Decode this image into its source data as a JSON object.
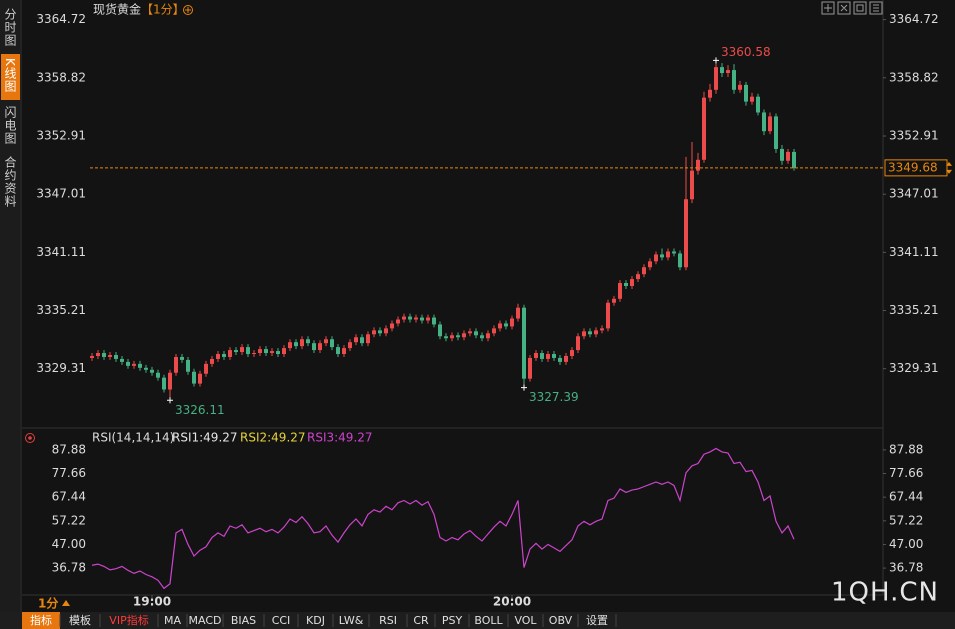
{
  "header": {
    "title": "现货黄金",
    "period": "【1分】"
  },
  "sidebar": {
    "tabs": [
      "分时图",
      "K线图",
      "闪电图",
      "合约资料"
    ],
    "active": 1
  },
  "period_selector": "1分",
  "toolbar": {
    "items": [
      "指标",
      "模板",
      "VIP指标",
      "MA",
      "MACD",
      "BIAS",
      "CCI",
      "KDJ",
      "LW&",
      "RSI",
      "CR",
      "PSY",
      "BOLL",
      "VOL",
      "OBV",
      "设置"
    ],
    "active": 0,
    "accent": 2
  },
  "watermark": "1QH.CN",
  "chart_data": [
    {
      "type": "candlestick",
      "up_color": "#ec4b4b",
      "down_color": "#46b184",
      "last_line_color": "#e8860f",
      "ylim": [
        3323.6,
        3366.2
      ],
      "yticks": [
        3364.72,
        3358.82,
        3352.91,
        3347.01,
        3341.11,
        3335.21,
        3329.31
      ],
      "annotations": {
        "high": 104,
        "lows": [
          13,
          72
        ]
      },
      "categories": [
        null,
        null,
        null,
        null,
        null,
        null,
        null,
        null,
        null,
        null,
        "19:00",
        null,
        null,
        null,
        null,
        null,
        null,
        null,
        null,
        null,
        null,
        null,
        null,
        null,
        null,
        null,
        null,
        null,
        null,
        null,
        null,
        null,
        null,
        null,
        null,
        null,
        null,
        null,
        null,
        null,
        null,
        null,
        null,
        null,
        null,
        null,
        null,
        null,
        null,
        null,
        null,
        null,
        null,
        null,
        null,
        null,
        null,
        null,
        null,
        null,
        null,
        null,
        null,
        null,
        null,
        null,
        null,
        null,
        null,
        null,
        "20:00",
        null,
        null,
        null,
        null,
        null,
        null,
        null,
        null,
        null,
        null,
        null,
        null,
        null,
        null,
        null,
        null,
        null,
        null,
        null,
        null,
        null,
        null,
        null,
        null,
        null,
        null,
        null,
        null,
        null,
        null,
        null,
        null,
        null,
        null,
        null,
        null,
        null,
        null,
        null,
        null,
        null,
        null,
        null,
        null,
        null,
        null,
        null
      ],
      "open": [
        3330.4,
        3330.6,
        3330.9,
        3330.5,
        3330.7,
        3330.3,
        3330.0,
        3329.6,
        3329.8,
        3329.4,
        3329.2,
        3328.9,
        3328.4,
        3327.2,
        3328.9,
        3330.5,
        3330.2,
        3329.0,
        3327.8,
        3328.8,
        3329.8,
        3330.3,
        3330.8,
        3330.5,
        3331.2,
        3331.0,
        3331.5,
        3330.8,
        3330.9,
        3331.3,
        3330.9,
        3331.1,
        3330.8,
        3331.4,
        3332.0,
        3331.6,
        3332.3,
        3331.9,
        3331.2,
        3331.9,
        3332.3,
        3331.5,
        3330.8,
        3331.4,
        3332.0,
        3332.5,
        3331.9,
        3332.8,
        3333.2,
        3332.9,
        3333.4,
        3333.9,
        3334.3,
        3334.6,
        3334.3,
        3334.5,
        3334.2,
        3334.5,
        3333.8,
        3332.6,
        3332.4,
        3332.7,
        3332.5,
        3332.9,
        3333.1,
        3332.7,
        3332.4,
        3332.9,
        3333.4,
        3333.9,
        3333.6,
        3334.4,
        3335.5,
        3328.3,
        3330.4,
        3330.9,
        3330.3,
        3330.8,
        3330.4,
        3330.0,
        3330.6,
        3331.2,
        3332.6,
        3333.1,
        3332.8,
        3333.2,
        3333.4,
        3336.0,
        3336.4,
        3338.0,
        3337.7,
        3338.4,
        3338.9,
        3339.6,
        3340.2,
        3340.9,
        3340.6,
        3341.2,
        3341.0,
        3339.6,
        3346.5,
        3349.4,
        3350.5,
        3356.8,
        3357.6,
        3359.9,
        3359.3,
        3359.6,
        3357.6,
        3358.1,
        3356.4,
        3356.9,
        3355.3,
        3353.4,
        3354.9,
        3351.6,
        3350.4,
        3351.3
      ],
      "high": [
        3330.9,
        3331.2,
        3331.2,
        3331.0,
        3331.0,
        3330.6,
        3330.3,
        3330.1,
        3330.1,
        3329.7,
        3329.5,
        3329.2,
        3328.7,
        3329.2,
        3330.8,
        3330.8,
        3330.5,
        3329.3,
        3329.1,
        3330.1,
        3330.6,
        3331.1,
        3331.1,
        3331.5,
        3331.5,
        3331.8,
        3331.8,
        3331.2,
        3331.6,
        3331.6,
        3331.4,
        3331.4,
        3331.7,
        3332.3,
        3332.3,
        3332.6,
        3332.6,
        3332.2,
        3332.2,
        3332.6,
        3332.6,
        3331.8,
        3331.7,
        3332.3,
        3332.8,
        3332.8,
        3333.1,
        3333.5,
        3333.5,
        3333.7,
        3334.2,
        3334.6,
        3334.9,
        3334.9,
        3334.8,
        3334.8,
        3334.8,
        3334.8,
        3334.1,
        3332.9,
        3333.0,
        3333.0,
        3333.2,
        3333.4,
        3333.4,
        3333.0,
        3333.2,
        3333.7,
        3334.2,
        3334.2,
        3334.7,
        3335.9,
        3335.8,
        3330.7,
        3331.2,
        3331.2,
        3331.1,
        3331.1,
        3330.7,
        3330.9,
        3331.5,
        3332.9,
        3333.4,
        3333.4,
        3333.5,
        3333.7,
        3336.3,
        3336.7,
        3338.3,
        3338.3,
        3338.7,
        3339.2,
        3339.9,
        3340.5,
        3341.2,
        3341.5,
        3341.5,
        3341.5,
        3341.3,
        3350.8,
        3352.3,
        3351.2,
        3357.4,
        3358.2,
        3360.58,
        3360.3,
        3360.1,
        3360.2,
        3358.5,
        3358.4,
        3357.3,
        3357.2,
        3355.6,
        3355.3,
        3355.2,
        3352.0,
        3351.6,
        3351.6
      ],
      "low": [
        3330.1,
        3330.3,
        3330.2,
        3330.2,
        3330.0,
        3329.7,
        3329.3,
        3329.3,
        3329.1,
        3328.9,
        3328.6,
        3328.1,
        3326.9,
        3326.11,
        3328.6,
        3329.9,
        3328.7,
        3327.5,
        3327.5,
        3328.5,
        3329.5,
        3330.0,
        3330.2,
        3330.2,
        3330.7,
        3330.7,
        3330.5,
        3330.5,
        3330.6,
        3330.6,
        3330.6,
        3330.5,
        3330.5,
        3331.1,
        3331.3,
        3331.3,
        3331.6,
        3330.9,
        3330.9,
        3331.6,
        3331.2,
        3330.5,
        3330.5,
        3331.1,
        3331.7,
        3331.6,
        3331.6,
        3332.5,
        3332.6,
        3332.6,
        3333.1,
        3333.6,
        3334.0,
        3334.0,
        3334.0,
        3333.9,
        3333.9,
        3333.5,
        3332.3,
        3332.1,
        3332.1,
        3332.2,
        3332.2,
        3332.6,
        3332.4,
        3332.1,
        3332.1,
        3332.6,
        3333.1,
        3333.3,
        3333.3,
        3334.1,
        3327.39,
        3328.0,
        3330.1,
        3330.0,
        3330.0,
        3330.1,
        3329.7,
        3329.7,
        3330.3,
        3330.9,
        3332.3,
        3332.5,
        3332.5,
        3332.9,
        3333.1,
        3335.7,
        3336.1,
        3337.4,
        3337.4,
        3338.1,
        3338.6,
        3339.3,
        3339.9,
        3340.3,
        3340.3,
        3340.7,
        3339.3,
        3339.3,
        3346.1,
        3349.0,
        3350.2,
        3356.4,
        3357.2,
        3358.9,
        3358.9,
        3357.2,
        3357.3,
        3356.0,
        3356.1,
        3355.0,
        3353.0,
        3353.1,
        3351.2,
        3350.0,
        3350.1,
        3349.4
      ],
      "close": [
        3330.6,
        3330.9,
        3330.5,
        3330.7,
        3330.3,
        3330.0,
        3329.6,
        3329.8,
        3329.4,
        3329.2,
        3328.9,
        3328.4,
        3327.2,
        3328.9,
        3330.5,
        3330.2,
        3329.0,
        3327.8,
        3328.8,
        3329.8,
        3330.3,
        3330.8,
        3330.5,
        3331.2,
        3331.0,
        3331.5,
        3330.8,
        3330.9,
        3331.3,
        3330.9,
        3331.1,
        3330.8,
        3331.4,
        3332.0,
        3331.6,
        3332.3,
        3331.9,
        3331.2,
        3331.9,
        3332.3,
        3331.5,
        3330.8,
        3331.4,
        3332.0,
        3332.5,
        3331.9,
        3332.8,
        3333.2,
        3332.9,
        3333.4,
        3333.9,
        3334.3,
        3334.6,
        3334.3,
        3334.5,
        3334.2,
        3334.5,
        3333.8,
        3332.6,
        3332.4,
        3332.7,
        3332.5,
        3332.9,
        3333.1,
        3332.7,
        3332.4,
        3332.9,
        3333.4,
        3333.9,
        3333.6,
        3334.4,
        3335.5,
        3328.3,
        3330.4,
        3330.9,
        3330.3,
        3330.8,
        3330.4,
        3330.0,
        3330.6,
        3331.2,
        3332.6,
        3333.1,
        3332.8,
        3333.2,
        3333.4,
        3336.0,
        3336.4,
        3338.0,
        3337.7,
        3338.4,
        3338.9,
        3339.6,
        3340.2,
        3340.9,
        3340.6,
        3341.2,
        3341.0,
        3339.6,
        3346.5,
        3349.4,
        3350.5,
        3356.8,
        3357.6,
        3359.9,
        3359.3,
        3359.6,
        3357.6,
        3358.1,
        3356.4,
        3356.9,
        3355.3,
        3353.4,
        3354.9,
        3351.6,
        3350.4,
        3351.3,
        3349.68
      ]
    },
    {
      "type": "line",
      "title": "RSI(14,14,14)",
      "color": "#cc44cc",
      "legend": [
        {
          "text": "RSI1:49.27",
          "color": "#e6e6e6"
        },
        {
          "text": "RSI2:49.27",
          "color": "#e6d23c"
        },
        {
          "text": "RSI3:49.27",
          "color": "#cc44cc"
        }
      ],
      "ylim": [
        27.3,
        90.0
      ],
      "yticks": [
        87.88,
        77.66,
        67.44,
        57.22,
        {
          "value": 47,
          "label": "47.00"
        },
        36.78
      ],
      "values": [
        38.0,
        38.5,
        37.5,
        36.0,
        36.5,
        37.5,
        35.8,
        34.5,
        35.5,
        34.0,
        33.0,
        31.5,
        28.0,
        30.0,
        52.0,
        53.5,
        47.0,
        42.0,
        44.5,
        46.0,
        50.0,
        52.0,
        50.5,
        55.0,
        54.0,
        55.5,
        52.0,
        53.0,
        54.0,
        52.5,
        53.5,
        52.0,
        54.5,
        58.0,
        56.5,
        59.0,
        56.0,
        52.0,
        52.5,
        55.0,
        51.0,
        48.0,
        52.0,
        55.5,
        58.0,
        55.0,
        60.0,
        62.0,
        61.0,
        63.5,
        62.0,
        65.0,
        66.0,
        64.5,
        66.0,
        64.0,
        65.5,
        60.0,
        50.0,
        48.5,
        50.0,
        49.0,
        51.5,
        53.0,
        50.5,
        48.5,
        51.5,
        54.5,
        57.0,
        55.0,
        60.0,
        66.0,
        37.0,
        45.0,
        47.5,
        45.0,
        47.0,
        45.5,
        44.0,
        46.5,
        49.0,
        55.0,
        57.0,
        55.5,
        57.0,
        58.0,
        66.0,
        67.0,
        71.0,
        69.5,
        70.5,
        71.0,
        72.0,
        73.0,
        74.0,
        73.0,
        74.0,
        72.5,
        66.0,
        78.0,
        81.0,
        82.0,
        86.0,
        87.0,
        88.5,
        87.0,
        86.5,
        82.0,
        82.5,
        78.5,
        79.0,
        74.0,
        66.0,
        68.0,
        57.0,
        52.0,
        55.0,
        49.27
      ]
    }
  ]
}
